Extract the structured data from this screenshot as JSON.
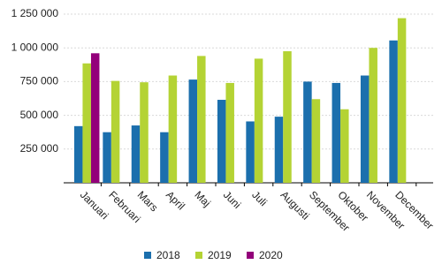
{
  "chart_data": {
    "type": "bar",
    "categories": [
      "Januari",
      "Februari",
      "Mars",
      "April",
      "Maj",
      "Juni",
      "Juli",
      "Augusti",
      "September",
      "Oktober",
      "November",
      "December"
    ],
    "series": [
      {
        "name": "2018",
        "color": "#1b6fad",
        "values": [
          420000,
          375000,
          425000,
          375000,
          765000,
          615000,
          455000,
          490000,
          750000,
          740000,
          795000,
          1055000
        ]
      },
      {
        "name": "2019",
        "color": "#b4d334",
        "values": [
          885000,
          755000,
          745000,
          795000,
          940000,
          740000,
          920000,
          975000,
          620000,
          545000,
          1000000,
          1220000
        ]
      },
      {
        "name": "2020",
        "color": "#93007a",
        "values": [
          960000,
          null,
          null,
          null,
          null,
          null,
          null,
          null,
          null,
          null,
          null,
          null
        ]
      }
    ],
    "ylim": [
      0,
      1250000
    ],
    "yticks": [
      {
        "value": 250000,
        "label": "250 000"
      },
      {
        "value": 500000,
        "label": "500 000"
      },
      {
        "value": 750000,
        "label": "750 000"
      },
      {
        "value": 1000000,
        "label": "1 000 000"
      },
      {
        "value": 1250000,
        "label": "1 250 000"
      }
    ],
    "grid": true
  }
}
